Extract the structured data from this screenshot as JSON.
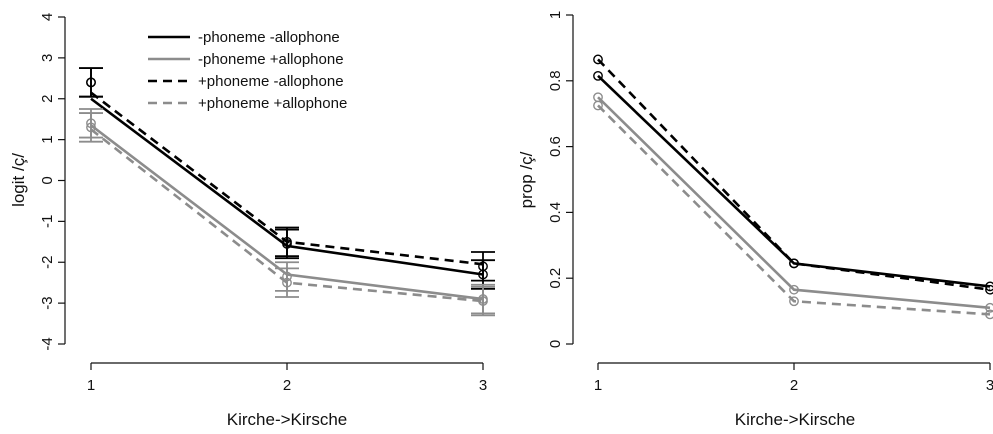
{
  "charts": [
    {
      "xlabel": "Kirche->Kirsche",
      "ylabel": "logit /ç/"
    },
    {
      "xlabel": "Kirche->Kirsche",
      "ylabel": "prop /ç/"
    }
  ],
  "legend": {
    "entries": [
      {
        "label": "-phoneme -allophone"
      },
      {
        "label": "-phoneme +allophone"
      },
      {
        "label": "+phoneme -allophone"
      },
      {
        "label": "+phoneme +allophone"
      }
    ]
  },
  "chart_data": [
    {
      "type": "line",
      "xlabel": "Kirche->Kirsche",
      "ylabel": "logit /ç/",
      "x": [
        1,
        2,
        3
      ],
      "xlim": [
        1,
        3
      ],
      "ylim": [
        -4,
        4
      ],
      "xticks": [
        "1",
        "2",
        "3"
      ],
      "yticks": [
        "-4",
        "-3",
        "-2",
        "-1",
        "0",
        "1",
        "2",
        "3",
        "4"
      ],
      "error_bars": true,
      "legend_position": "top",
      "series": [
        {
          "name": "-phoneme -allophone",
          "color": "#000000",
          "dash": "solid",
          "means": [
            2.4,
            -1.55,
            -2.3
          ],
          "fit": [
            2.0,
            -1.6,
            -2.3
          ],
          "err": [
            0.35,
            0.35,
            0.35
          ]
        },
        {
          "name": "-phoneme +allophone",
          "color": "#8c8c8c",
          "dash": "solid",
          "means": [
            1.4,
            -2.35,
            -2.95
          ],
          "fit": [
            1.35,
            -2.3,
            -2.9
          ],
          "err": [
            0.35,
            0.35,
            0.35
          ]
        },
        {
          "name": "+phoneme -allophone",
          "color": "#000000",
          "dash": "dashed",
          "means": [
            2.4,
            -1.5,
            -2.1
          ],
          "fit": [
            2.15,
            -1.5,
            -2.05
          ],
          "err": [
            0.35,
            0.35,
            0.35
          ]
        },
        {
          "name": "+phoneme +allophone",
          "color": "#8c8c8c",
          "dash": "dashed",
          "means": [
            1.3,
            -2.5,
            -2.9
          ],
          "fit": [
            1.25,
            -2.5,
            -2.95
          ],
          "err": [
            0.35,
            0.35,
            0.35
          ]
        }
      ]
    },
    {
      "type": "line",
      "xlabel": "Kirche->Kirsche",
      "ylabel": "prop /ç/",
      "x": [
        1,
        2,
        3
      ],
      "xlim": [
        1,
        3
      ],
      "ylim": [
        0,
        1
      ],
      "xticks": [
        "1",
        "2",
        "3"
      ],
      "yticks": [
        "0",
        "0.2",
        "0.4",
        "0.6",
        "0.8",
        "1"
      ],
      "series": [
        {
          "name": "-phoneme -allophone",
          "color": "#000000",
          "dash": "solid",
          "values": [
            0.815,
            0.245,
            0.175
          ]
        },
        {
          "name": "-phoneme +allophone",
          "color": "#8c8c8c",
          "dash": "solid",
          "values": [
            0.75,
            0.165,
            0.11
          ]
        },
        {
          "name": "+phoneme -allophone",
          "color": "#000000",
          "dash": "dashed",
          "values": [
            0.865,
            0.245,
            0.165
          ]
        },
        {
          "name": "+phoneme +allophone",
          "color": "#8c8c8c",
          "dash": "dashed",
          "values": [
            0.725,
            0.13,
            0.09
          ]
        }
      ]
    }
  ]
}
